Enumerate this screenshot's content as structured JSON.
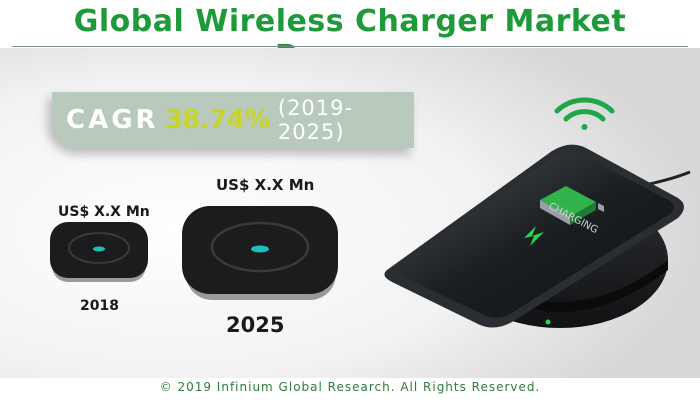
{
  "title": "Global Wireless Charger Market Revenue",
  "cagr": {
    "label": "CAGR",
    "value": "38.74%",
    "years": "(2019-2025)"
  },
  "charger_2018": {
    "value_label": "US$ X.X Mn",
    "year": "2018"
  },
  "charger_2025": {
    "value_label": "US$ X.X Mn",
    "year": "2025"
  },
  "phone_screen_text": "CHARGING",
  "footer": "© 2019 Infinium Global Research. All Rights Reserved.",
  "colors": {
    "title_green": "#1f9a3b",
    "cagr_value": "#c8d42a",
    "cagr_box": "#b9c9bc",
    "wifi_green": "#1fa64a"
  },
  "icons": [
    "wifi-signal-icon",
    "lightning-bolt-icon",
    "battery-icon"
  ]
}
